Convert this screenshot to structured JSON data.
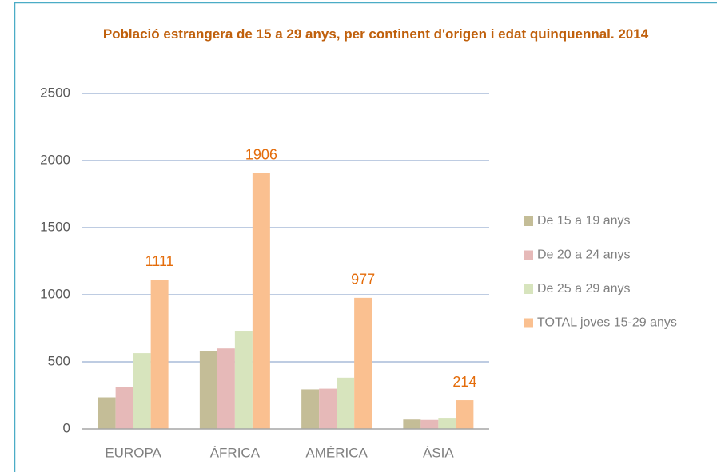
{
  "chart_data": {
    "type": "bar",
    "title": "Població estrangera de 15 a 29 anys, per continent d'origen i edat quinquennal. 2014",
    "categories": [
      "EUROPA",
      "ÀFRICA",
      "AMÈRICA",
      "ÀSIA"
    ],
    "series": [
      {
        "name": "De 15 a 19 anys",
        "color": "#c4bd97",
        "values": [
          235,
          580,
          295,
          70
        ]
      },
      {
        "name": "De 20 a 24 anys",
        "color": "#e6b9b8",
        "values": [
          310,
          600,
          300,
          67
        ]
      },
      {
        "name": "De 25 a 29 anys",
        "color": "#d7e4bd",
        "values": [
          565,
          726,
          382,
          77
        ]
      },
      {
        "name": "TOTAL joves 15-29 anys",
        "color": "#fac090",
        "values": [
          1111,
          1906,
          977,
          214
        ],
        "data_labels": true,
        "label_color": "#e46c0a"
      }
    ],
    "ylim": [
      0,
      2500
    ],
    "yticks": [
      0,
      500,
      1000,
      1500,
      2000,
      2500
    ],
    "grid": true,
    "legend": "right"
  }
}
